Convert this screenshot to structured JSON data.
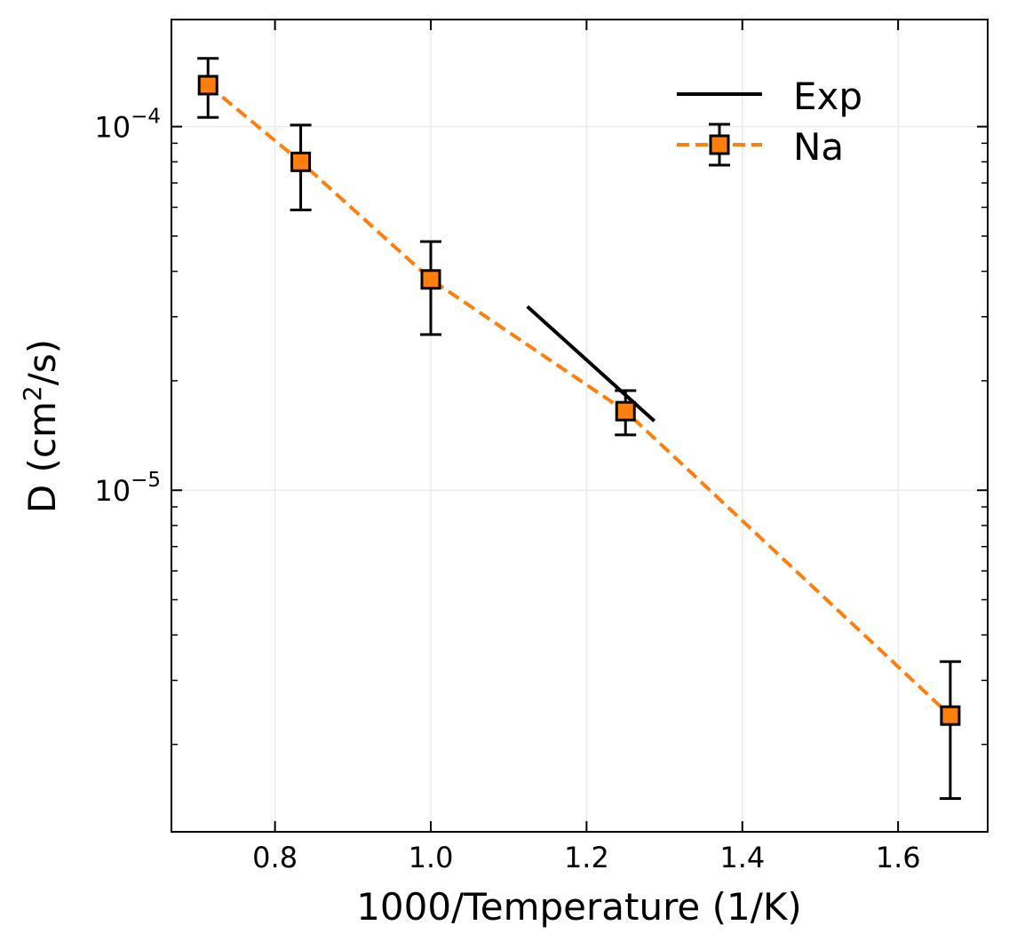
{
  "chart_data": {
    "type": "line",
    "xlabel": "1000/Temperature (1/K)",
    "ylabel_prefix": "D (cm",
    "ylabel_sup": "2",
    "ylabel_suffix": "/s)",
    "xscale": "linear",
    "yscale": "log",
    "xlim": [
      0.667,
      1.715
    ],
    "ylim": [
      1.15e-06,
      0.000197
    ],
    "grid": true,
    "legend_position": "top-right",
    "x_ticks": [
      {
        "value": 0.8,
        "label": "0.8"
      },
      {
        "value": 1.0,
        "label": "1.0"
      },
      {
        "value": 1.2,
        "label": "1.2"
      },
      {
        "value": 1.4,
        "label": "1.4"
      },
      {
        "value": 1.6,
        "label": "1.6"
      }
    ],
    "y_major_ticks": [
      {
        "value": 1e-05,
        "base": "10",
        "exp": "−5"
      },
      {
        "value": 0.0001,
        "base": "10",
        "exp": "−4"
      }
    ],
    "y_minor_ticks": [
      2e-06,
      3e-06,
      4e-06,
      5e-06,
      6e-06,
      7e-06,
      8e-06,
      9e-06,
      2e-05,
      3e-05,
      4e-05,
      5e-05,
      6e-05,
      7e-05,
      8e-05,
      9e-05
    ],
    "series": [
      {
        "name": "Exp",
        "style": "solid",
        "color": "#000000",
        "x": [
          1.124,
          1.287
        ],
        "y": [
          3.2e-05,
          1.55e-05
        ]
      },
      {
        "name": "Na",
        "style": "dashed",
        "marker": "square",
        "color": "#ff7f0e",
        "x": [
          0.714,
          0.833,
          1.0,
          1.25,
          1.667
        ],
        "y": [
          0.00013,
          8e-05,
          3.8e-05,
          1.65e-05,
          2.4e-06
        ],
        "yerr_low": [
          0.000106,
          5.9e-05,
          2.68e-05,
          1.42e-05,
          1.42e-06
        ],
        "yerr_high": [
          0.000154,
          0.000101,
          4.83e-05,
          1.88e-05,
          3.38e-06
        ]
      }
    ]
  }
}
